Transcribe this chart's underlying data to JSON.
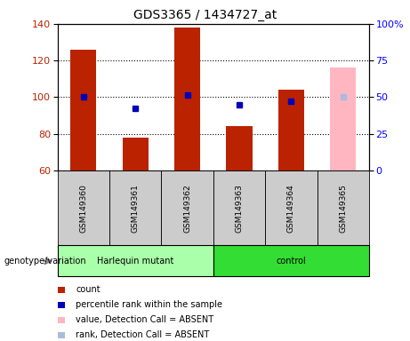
{
  "title": "GDS3365 / 1434727_at",
  "samples": [
    "GSM149360",
    "GSM149361",
    "GSM149362",
    "GSM149363",
    "GSM149364",
    "GSM149365"
  ],
  "count_values": [
    126,
    78,
    138,
    84,
    104,
    null
  ],
  "rank_values": [
    100,
    94,
    101,
    96,
    98,
    null
  ],
  "absent_count": [
    null,
    null,
    null,
    null,
    null,
    116
  ],
  "absent_rank": [
    null,
    null,
    null,
    null,
    null,
    100
  ],
  "ylim": [
    60,
    140
  ],
  "yticks_left": [
    60,
    80,
    100,
    120,
    140
  ],
  "yticks_right": [
    0,
    25,
    50,
    75,
    100
  ],
  "right_axis_ticks_labels": [
    "0",
    "25",
    "50",
    "75",
    "100%"
  ],
  "bar_color": "#bb2200",
  "absent_bar_color": "#ffb6c1",
  "rank_color": "#0000bb",
  "absent_rank_color": "#aabbdd",
  "bg_label": "#cccccc",
  "harlequin_color": "#aaffaa",
  "control_color": "#33dd33",
  "bar_width": 0.5,
  "legend_items": [
    {
      "label": "count",
      "color": "#bb2200"
    },
    {
      "label": "percentile rank within the sample",
      "color": "#0000bb"
    },
    {
      "label": "value, Detection Call = ABSENT",
      "color": "#ffb6c1"
    },
    {
      "label": "rank, Detection Call = ABSENT",
      "color": "#aabbdd"
    }
  ]
}
